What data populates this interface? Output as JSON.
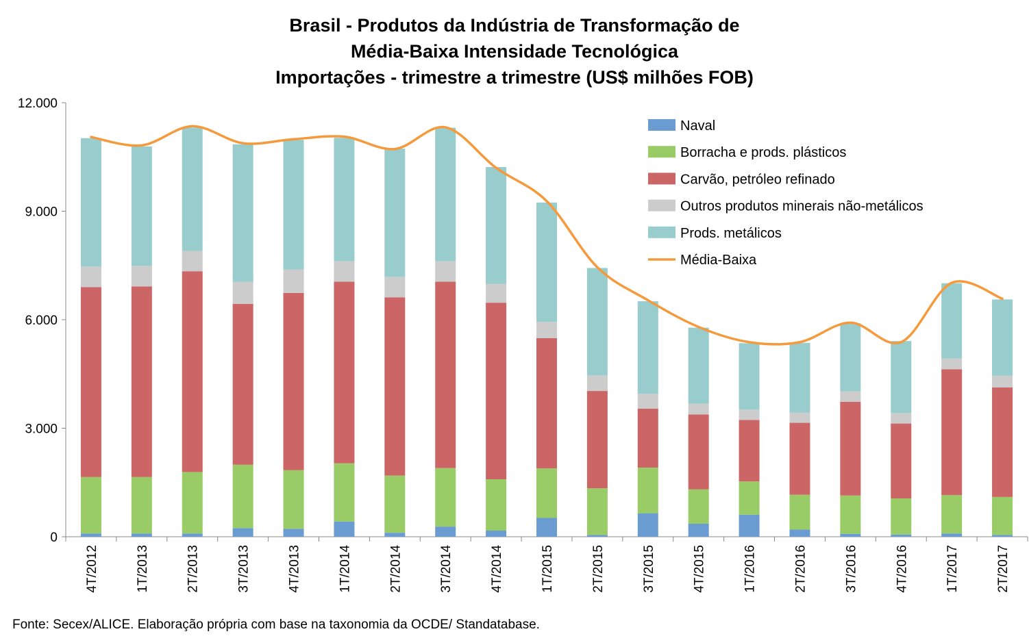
{
  "chart_data": {
    "type": "bar",
    "stacked": true,
    "title": [
      "Brasil - Produtos da Indústria de Transformação de",
      "Média-Baixa Intensidade Tecnológica",
      "Importações - trimestre a trimestre (US$ milhões FOB)"
    ],
    "xlabel": "",
    "ylabel": "",
    "ylim": [
      0,
      12000
    ],
    "yticks": [
      0,
      3000,
      6000,
      9000,
      12000
    ],
    "ytick_labels": [
      "0",
      "3.000",
      "6.000",
      "9.000",
      "12.000"
    ],
    "grid": false,
    "legend_position": "top-right",
    "categories": [
      "4T/2012",
      "1T/2013",
      "2T/2013",
      "3T/2013",
      "4T/2013",
      "1T/2014",
      "2T/2014",
      "3T/2014",
      "4T/2014",
      "1T/2015",
      "2T/2015",
      "3T/2015",
      "4T/2015",
      "1T/2016",
      "2T/2016",
      "3T/2016",
      "4T/2016",
      "1T/2017",
      "2T/2017"
    ],
    "series": [
      {
        "name": "Naval",
        "color": "#6a9bd1",
        "kind": "bar",
        "values": [
          90,
          90,
          90,
          240,
          220,
          420,
          110,
          280,
          170,
          520,
          50,
          650,
          360,
          610,
          200,
          80,
          60,
          90,
          50
        ]
      },
      {
        "name": "Borracha e prods. plásticos",
        "color": "#99cc66",
        "kind": "bar",
        "values": [
          1560,
          1560,
          1700,
          1750,
          1620,
          1610,
          1580,
          1620,
          1420,
          1370,
          1290,
          1260,
          950,
          920,
          960,
          1060,
          1000,
          1060,
          1050
        ]
      },
      {
        "name": "Carvão, petróleo refinado",
        "color": "#cc6666",
        "kind": "bar",
        "values": [
          5250,
          5270,
          5550,
          4450,
          4900,
          5020,
          4930,
          5150,
          4880,
          3600,
          2690,
          1630,
          2070,
          1700,
          1990,
          2590,
          2070,
          3480,
          3030
        ]
      },
      {
        "name": "Outros produtos minerais não-metálicos",
        "color": "#cccccc",
        "kind": "bar",
        "values": [
          570,
          570,
          560,
          610,
          650,
          570,
          560,
          570,
          520,
          450,
          430,
          410,
          300,
          290,
          280,
          290,
          290,
          300,
          320
        ]
      },
      {
        "name": "Prods. metálicos",
        "color": "#99cccc",
        "kind": "bar",
        "values": [
          3550,
          3300,
          3410,
          3800,
          3580,
          3410,
          3550,
          3690,
          3230,
          3300,
          2970,
          2560,
          2100,
          1830,
          1930,
          1880,
          1990,
          2080,
          2110
        ]
      },
      {
        "name": "Média-Baixa",
        "color": "#f59a3c",
        "kind": "line",
        "values": [
          11050,
          10820,
          11350,
          10880,
          10990,
          11060,
          10720,
          11320,
          10200,
          9280,
          7450,
          6540,
          5800,
          5380,
          5380,
          5920,
          5380,
          7020,
          6580
        ]
      }
    ],
    "source": "Fonte: Secex/ALICE. Elaboração própria com base na taxonomia da OCDE/ Standatabase."
  }
}
